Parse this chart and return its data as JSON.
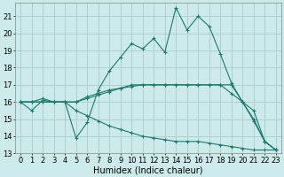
{
  "title": "",
  "xlabel": "Humidex (Indice chaleur)",
  "background_color": "#cceaea",
  "grid_color": "#aacccc",
  "line_color": "#1a7a6e",
  "xlim": [
    -0.5,
    23.5
  ],
  "ylim": [
    13,
    21.8
  ],
  "yticks": [
    13,
    14,
    15,
    16,
    17,
    18,
    19,
    20,
    21
  ],
  "xticks": [
    0,
    1,
    2,
    3,
    4,
    5,
    6,
    7,
    8,
    9,
    10,
    11,
    12,
    13,
    14,
    15,
    16,
    17,
    18,
    19,
    20,
    21,
    22,
    23
  ],
  "series": [
    [
      16.0,
      15.5,
      16.1,
      16.0,
      16.0,
      13.9,
      14.8,
      16.7,
      17.8,
      18.6,
      19.4,
      19.1,
      19.7,
      18.9,
      21.5,
      20.2,
      21.0,
      20.4,
      18.8,
      17.1,
      16.0,
      14.9,
      13.7,
      13.2
    ],
    [
      16.0,
      16.0,
      16.0,
      16.0,
      16.0,
      16.0,
      16.3,
      16.5,
      16.7,
      16.8,
      16.9,
      17.0,
      17.0,
      17.0,
      17.0,
      17.0,
      17.0,
      17.0,
      17.0,
      17.0,
      16.0,
      15.0,
      13.7,
      13.2
    ],
    [
      16.0,
      16.0,
      16.0,
      16.0,
      16.0,
      15.5,
      15.2,
      14.9,
      14.6,
      14.4,
      14.2,
      14.0,
      13.9,
      13.8,
      13.7,
      13.7,
      13.7,
      13.6,
      13.5,
      13.4,
      13.3,
      13.2,
      13.2,
      13.2
    ],
    [
      16.0,
      16.0,
      16.2,
      16.0,
      16.0,
      16.0,
      16.2,
      16.4,
      16.6,
      16.8,
      17.0,
      17.0,
      17.0,
      17.0,
      17.0,
      17.0,
      17.0,
      17.0,
      17.0,
      16.5,
      16.0,
      15.5,
      13.7,
      13.2
    ]
  ],
  "tick_fontsize": 6,
  "xlabel_fontsize": 7
}
